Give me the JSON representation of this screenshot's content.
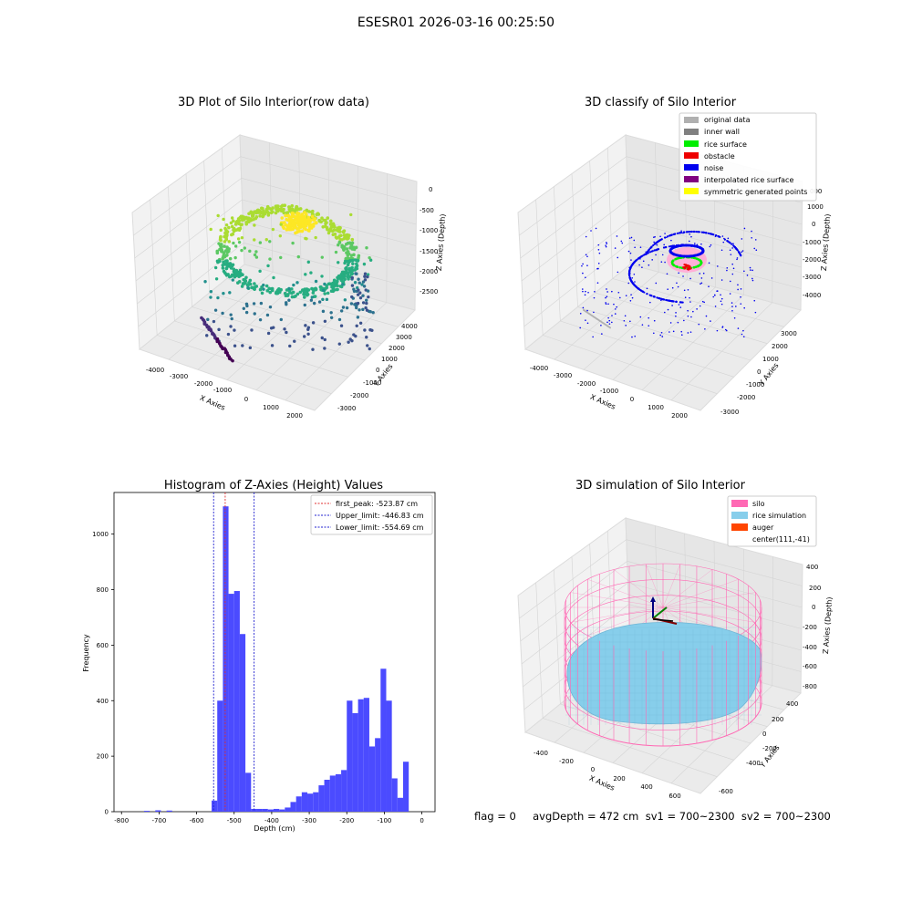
{
  "figure": {
    "suptitle": "ESESR01 2026-03-16 00:25:50",
    "status_line": "flag = 0     avgDepth = 472 cm  sv1 = 700~2300  sv2 = 700~2300"
  },
  "colors": {
    "histogram_bar": "#4b4bff",
    "first_peak_line": "#e03030",
    "limit_line": "#2020d0",
    "pane_left": "#f2f2f2",
    "pane_right": "#e6e6e6",
    "pane_floor": "#ebebeb",
    "silo": "#ff69b4",
    "rice_simulation": "#87ceeb",
    "auger": "#ff4500",
    "original_data": "#b0b0b0",
    "inner_wall": "#808080",
    "rice_surface": "#00ee00",
    "obstacle": "#ee0000",
    "noise": "#0000ee",
    "interpolated_rice_surface": "#800080",
    "symmetric_generated_points": "#ffff00"
  },
  "chart_data": [
    {
      "type": "scatter",
      "title": "3D Plot of Silo Interior(row data)",
      "xlabel": "X Axies",
      "ylabel": "Y Axies",
      "zlabel": "Z Axies (Depth)",
      "x_ticks": [
        "-4000",
        "-3000",
        "-2000",
        "-1000",
        "0",
        "1000",
        "2000"
      ],
      "y_ticks": [
        "-3000",
        "-2000",
        "-1000",
        "0",
        "1000",
        "2000",
        "3000",
        "4000"
      ],
      "z_ticks": [
        "-2500",
        "-2000",
        "-1500",
        "-1000",
        "-500",
        "0"
      ],
      "colormap": "viridis by depth"
    },
    {
      "type": "scatter",
      "title": "3D classify of Silo Interior",
      "xlabel": "X Axies",
      "ylabel": "Y Axies",
      "zlabel": "Z Axies (Depth)",
      "x_ticks": [
        "-4000",
        "-3000",
        "-2000",
        "-1000",
        "0",
        "1000",
        "2000"
      ],
      "y_ticks": [
        "-3000",
        "-2000",
        "-1000",
        "0",
        "1000",
        "2000",
        "3000"
      ],
      "z_ticks": [
        "-4000",
        "-3000",
        "-2000",
        "-1000",
        "0",
        "1000",
        "2000",
        "3000"
      ],
      "z_tick_visible_partial": "000",
      "legend": [
        "original data",
        "inner wall",
        "rice surface",
        "obstacle",
        "noise",
        "interpolated rice surface",
        "symmetric generated points"
      ],
      "legend_placement": "top-right"
    },
    {
      "type": "bar",
      "title": "Histogram of Z-Axies (Height) Values",
      "xlabel": "Depth (cm)",
      "ylabel": "Frequency",
      "xlim": [
        -820,
        35
      ],
      "ylim": [
        0,
        1150
      ],
      "x_ticks": [
        -800,
        -700,
        -600,
        -500,
        -400,
        -300,
        -200,
        -100,
        0
      ],
      "y_ticks": [
        0,
        200,
        400,
        600,
        800,
        1000
      ],
      "bin_width": 15,
      "bin_start": -800,
      "values": [
        0,
        0,
        0,
        0,
        3,
        0,
        5,
        0,
        4,
        0,
        0,
        0,
        0,
        0,
        0,
        0,
        40,
        400,
        1100,
        785,
        795,
        640,
        140,
        10,
        10,
        10,
        8,
        10,
        8,
        15,
        35,
        55,
        70,
        65,
        70,
        95,
        115,
        130,
        135,
        150,
        400,
        355,
        405,
        410,
        235,
        265,
        515,
        400,
        120,
        50,
        180
      ],
      "lines": [
        {
          "name": "first_peak: -523.87 cm",
          "x": -523.87,
          "style": "dashed",
          "color": "red"
        },
        {
          "name": "Upper_limit: -446.83 cm",
          "x": -446.83,
          "style": "dashed",
          "color": "blue"
        },
        {
          "name": "Lower_limit: -554.69 cm",
          "x": -554.69,
          "style": "dashed",
          "color": "blue"
        }
      ],
      "legend_placement": "top-right"
    },
    {
      "type": "scatter",
      "title": "3D simulation of Silo Interior",
      "xlabel": "X Axies",
      "ylabel": "Y Axies",
      "zlabel": "Z Axies (Depth)",
      "x_ticks": [
        "-400",
        "-200",
        "0",
        "200",
        "400",
        "600"
      ],
      "y_ticks": [
        "-600",
        "-400",
        "-200",
        "0",
        "200",
        "400"
      ],
      "z_ticks": [
        "-800",
        "-600",
        "-400",
        "-200",
        "0",
        "200",
        "400"
      ],
      "legend": [
        "silo",
        "rice simulation",
        "auger",
        "center(111,-41)"
      ],
      "legend_placement": "top-right"
    }
  ]
}
